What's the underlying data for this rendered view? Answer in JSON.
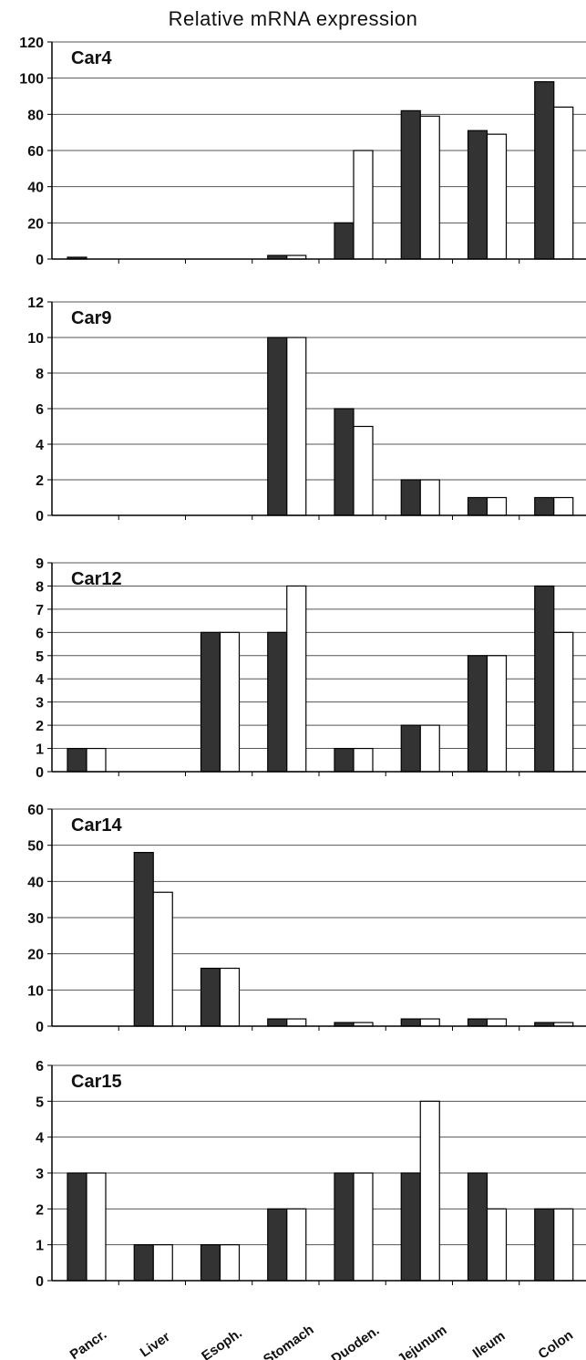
{
  "title": "Relative mRNA expression",
  "colors": {
    "series_dark": "#333333",
    "series_light": "#ffffff",
    "grid": "#555555",
    "axis": "#000000"
  },
  "chart_data": [
    {
      "type": "bar",
      "panel_label": "Car4",
      "categories": [
        "Pancr.",
        "Liver",
        "Esoph.",
        "Stomach",
        "Duoden.",
        "Jejunum",
        "Ileum",
        "Colon"
      ],
      "series": [
        {
          "values": [
            1,
            0,
            0,
            2,
            20,
            82,
            71,
            98
          ]
        },
        {
          "values": [
            0,
            0,
            0,
            2,
            60,
            79,
            69,
            84
          ]
        }
      ],
      "ylim": [
        0,
        120
      ],
      "yticks": [
        0,
        20,
        40,
        60,
        80,
        100,
        120
      ],
      "grid": true
    },
    {
      "type": "bar",
      "panel_label": "Car9",
      "categories": [
        "Pancr.",
        "Liver",
        "Esoph.",
        "Stomach",
        "Duoden.",
        "Jejunum",
        "Ileum",
        "Colon"
      ],
      "series": [
        {
          "values": [
            0,
            0,
            0,
            10,
            6,
            2,
            1,
            1
          ]
        },
        {
          "values": [
            0,
            0,
            0,
            10,
            5,
            2,
            1,
            1
          ]
        }
      ],
      "ylim": [
        0,
        12
      ],
      "yticks": [
        0,
        2,
        4,
        6,
        8,
        10,
        12
      ],
      "grid": true
    },
    {
      "type": "bar",
      "panel_label": "Car12",
      "categories": [
        "Pancr.",
        "Liver",
        "Esoph.",
        "Stomach",
        "Duoden.",
        "Jejunum",
        "Ileum",
        "Colon"
      ],
      "series": [
        {
          "values": [
            1,
            0,
            6,
            6,
            1,
            2,
            5,
            8
          ]
        },
        {
          "values": [
            1,
            0,
            6,
            8,
            1,
            2,
            5,
            6
          ]
        }
      ],
      "ylim": [
        0,
        9
      ],
      "yticks": [
        0,
        1,
        2,
        3,
        4,
        5,
        6,
        7,
        8,
        9
      ],
      "grid": true
    },
    {
      "type": "bar",
      "panel_label": "Car14",
      "categories": [
        "Pancr.",
        "Liver",
        "Esoph.",
        "Stomach",
        "Duoden.",
        "Jejunum",
        "Ileum",
        "Colon"
      ],
      "series": [
        {
          "values": [
            0,
            48,
            16,
            2,
            1,
            2,
            2,
            1
          ]
        },
        {
          "values": [
            0,
            37,
            16,
            2,
            1,
            2,
            2,
            1
          ]
        }
      ],
      "ylim": [
        0,
        60
      ],
      "yticks": [
        0,
        10,
        20,
        30,
        40,
        50,
        60
      ],
      "grid": true
    },
    {
      "type": "bar",
      "panel_label": "Car15",
      "categories": [
        "Pancr.",
        "Liver",
        "Esoph.",
        "Stomach",
        "Duoden.",
        "Jejunum",
        "Ileum",
        "Colon"
      ],
      "series": [
        {
          "values": [
            3,
            1,
            1,
            2,
            3,
            3,
            3,
            2
          ]
        },
        {
          "values": [
            3,
            1,
            1,
            2,
            3,
            5,
            2,
            2
          ]
        }
      ],
      "ylim": [
        0,
        6
      ],
      "yticks": [
        0,
        1,
        2,
        3,
        4,
        5,
        6
      ],
      "grid": true
    }
  ]
}
